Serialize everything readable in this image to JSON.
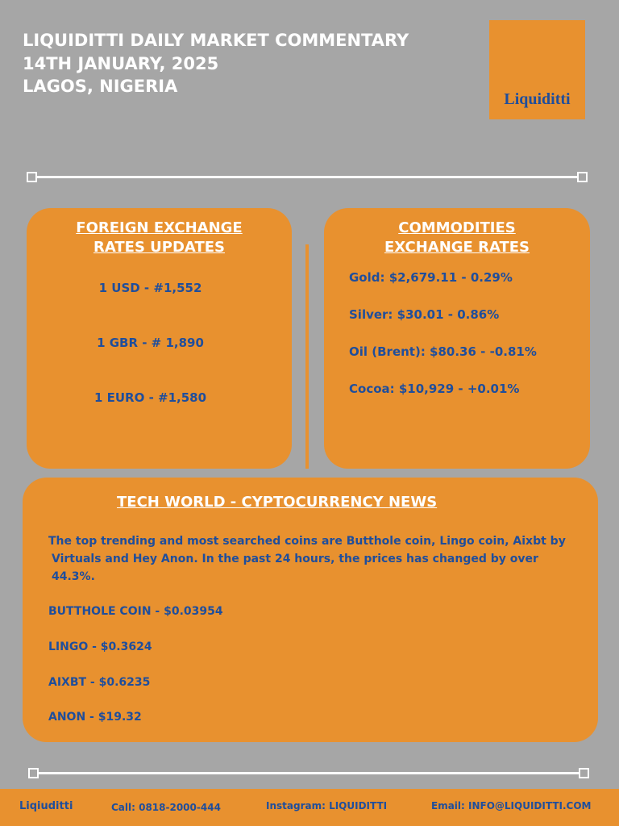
{
  "header": {
    "title_lines": [
      "LIQUIDITTI DAILY MARKET COMMENTARY",
      "14TH JANUARY, 2025",
      "LAGOS, NIGERIA"
    ],
    "logo": "Liquiditti"
  },
  "foreign_exchange": {
    "title_lines": [
      "FOREIGN EXCHANGE",
      "RATES UPDATES"
    ],
    "rates": [
      "1 USD - #1,552",
      "1 GBR - # 1,890",
      "1 EURO - #1,580"
    ]
  },
  "commodities": {
    "title_lines": [
      "COMMODITIES",
      "EXCHANGE RATES"
    ],
    "rates": [
      "Gold: $2,679.11 -  0.29%",
      "Silver: $30.01   -   0.86%",
      "Oil (Brent): $80.36 -  -0.81%",
      "Cocoa: $10,929 - +0.01%"
    ]
  },
  "tech": {
    "title": "TECH WORLD - CYPTOCURRENCY NEWS",
    "paragraph_lines": [
      "The top trending and most searched coins are Butthole coin, Lingo coin,  Aixbt by",
      "Virtuals and Hey Anon. In the past 24 hours, the prices has changed by over",
      "44.3%."
    ],
    "coins": [
      "BUTTHOLE COIN - $0.03954",
      "LINGO - $0.3624",
      "AIXBT - $0.6235",
      "ANON - $19.32"
    ]
  },
  "footer": {
    "brand": "Liqiuditti",
    "call": "Call: 0818-2000-444",
    "instagram": "Instagram: LIQUIDITTI",
    "email": "Email: INFO@LIQUIDITTI.COM"
  }
}
